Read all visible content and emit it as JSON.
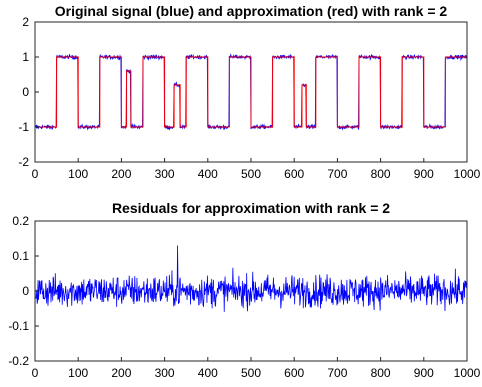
{
  "chart_data": [
    {
      "type": "line",
      "title": "Original signal (blue) and approximation (red) with rank = 2",
      "xlabel": "",
      "ylabel": "",
      "xlim": [
        0,
        1000
      ],
      "ylim": [
        -2,
        2
      ],
      "x_ticks": [
        0,
        100,
        200,
        300,
        400,
        500,
        600,
        700,
        800,
        900,
        1000
      ],
      "y_ticks": [
        -2,
        -1,
        0,
        1,
        2
      ],
      "grid": false,
      "noise_amplitude_original": 0.05,
      "series": [
        {
          "color": "#0000ff",
          "role": "original",
          "values_description": "square wave between -1 and 1 with small noise"
        },
        {
          "color": "#ff0000",
          "role": "approximation",
          "segments": [
            {
              "x_start": 0,
              "x_end": 50,
              "value": -1
            },
            {
              "x_start": 50,
              "x_end": 100,
              "value": 1
            },
            {
              "x_start": 100,
              "x_end": 150,
              "value": -1
            },
            {
              "x_start": 150,
              "x_end": 200,
              "value": 1
            },
            {
              "x_start": 200,
              "x_end": 212,
              "value": -1
            },
            {
              "x_start": 212,
              "x_end": 222,
              "value": 0.6
            },
            {
              "x_start": 222,
              "x_end": 250,
              "value": -1
            },
            {
              "x_start": 250,
              "x_end": 300,
              "value": 1
            },
            {
              "x_start": 300,
              "x_end": 322,
              "value": -1
            },
            {
              "x_start": 322,
              "x_end": 336,
              "value": 0.2
            },
            {
              "x_start": 336,
              "x_end": 350,
              "value": -1
            },
            {
              "x_start": 350,
              "x_end": 400,
              "value": 1
            },
            {
              "x_start": 400,
              "x_end": 450,
              "value": -1
            },
            {
              "x_start": 450,
              "x_end": 500,
              "value": 1
            },
            {
              "x_start": 500,
              "x_end": 550,
              "value": -1
            },
            {
              "x_start": 550,
              "x_end": 600,
              "value": 1
            },
            {
              "x_start": 600,
              "x_end": 618,
              "value": -1
            },
            {
              "x_start": 618,
              "x_end": 628,
              "value": 0.2
            },
            {
              "x_start": 628,
              "x_end": 650,
              "value": -1
            },
            {
              "x_start": 650,
              "x_end": 700,
              "value": 1
            },
            {
              "x_start": 700,
              "x_end": 750,
              "value": -1
            },
            {
              "x_start": 750,
              "x_end": 800,
              "value": 1
            },
            {
              "x_start": 800,
              "x_end": 850,
              "value": -1
            },
            {
              "x_start": 850,
              "x_end": 900,
              "value": 1
            },
            {
              "x_start": 900,
              "x_end": 950,
              "value": -1
            },
            {
              "x_start": 950,
              "x_end": 1000,
              "value": 1
            }
          ]
        }
      ]
    },
    {
      "type": "line",
      "title": "Residuals for  approximation with rank = 2",
      "xlabel": "",
      "ylabel": "",
      "xlim": [
        0,
        1000
      ],
      "ylim": [
        -0.2,
        0.2
      ],
      "x_ticks": [
        0,
        100,
        200,
        300,
        400,
        500,
        600,
        700,
        800,
        900,
        1000
      ],
      "y_ticks": [
        -0.2,
        -0.1,
        0,
        0.1,
        0.2
      ],
      "grid": false,
      "series": [
        {
          "color": "#0000ff",
          "role": "residuals",
          "values_description": "noise centered at 0, mostly within ±0.1, peak about 0.14"
        }
      ]
    }
  ]
}
